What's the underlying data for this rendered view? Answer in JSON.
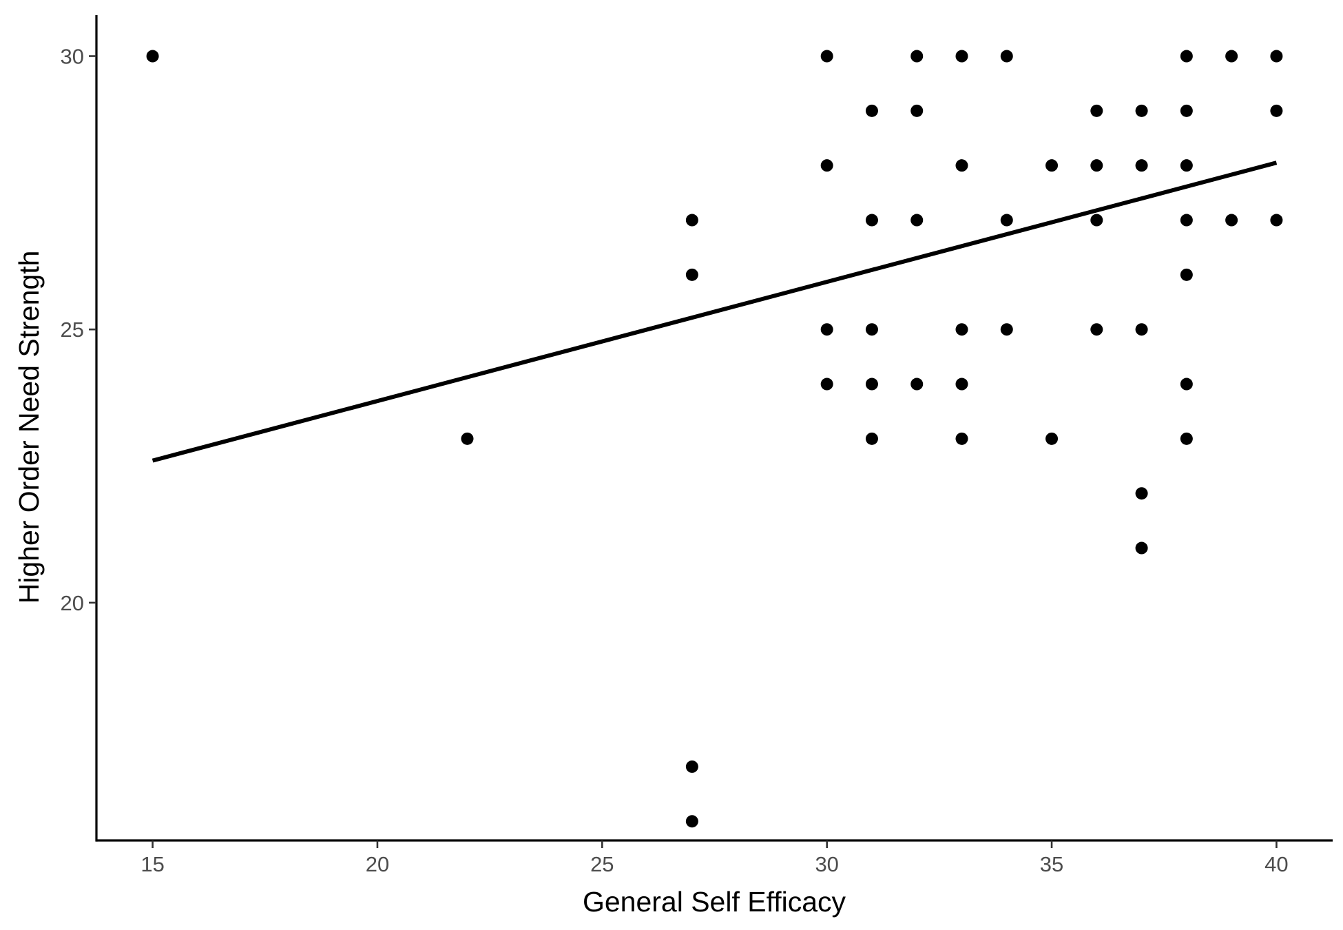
{
  "chart_data": {
    "type": "scatter",
    "title": "",
    "xlabel": "General Self Efficacy",
    "ylabel": "Higher Order Need Strength",
    "xlim": [
      13.75,
      41.25
    ],
    "ylim": [
      15.65,
      30.75
    ],
    "x_ticks": [
      15,
      20,
      25,
      30,
      35,
      40
    ],
    "y_ticks": [
      20,
      25,
      30
    ],
    "x_tick_labels": [
      "15",
      "20",
      "25",
      "30",
      "35",
      "40"
    ],
    "y_tick_labels": [
      "20",
      "25",
      "30"
    ],
    "grid": false,
    "legend": "none",
    "points": [
      [
        15,
        30
      ],
      [
        22,
        23
      ],
      [
        27,
        27
      ],
      [
        27,
        26
      ],
      [
        27,
        17
      ],
      [
        27,
        16
      ],
      [
        30,
        30
      ],
      [
        30,
        28
      ],
      [
        30,
        25
      ],
      [
        30,
        24
      ],
      [
        31,
        29
      ],
      [
        31,
        27
      ],
      [
        31,
        25
      ],
      [
        31,
        24
      ],
      [
        31,
        23
      ],
      [
        32,
        30
      ],
      [
        32,
        29
      ],
      [
        32,
        27
      ],
      [
        32,
        24
      ],
      [
        33,
        30
      ],
      [
        33,
        28
      ],
      [
        33,
        25
      ],
      [
        33,
        24
      ],
      [
        33,
        23
      ],
      [
        34,
        30
      ],
      [
        34,
        27
      ],
      [
        34,
        25
      ],
      [
        35,
        28
      ],
      [
        35,
        23
      ],
      [
        36,
        29
      ],
      [
        36,
        28
      ],
      [
        36,
        27
      ],
      [
        36,
        25
      ],
      [
        37,
        29
      ],
      [
        37,
        28
      ],
      [
        37,
        25
      ],
      [
        37,
        22
      ],
      [
        37,
        21
      ],
      [
        38,
        30
      ],
      [
        38,
        29
      ],
      [
        38,
        28
      ],
      [
        38,
        27
      ],
      [
        38,
        26
      ],
      [
        38,
        24
      ],
      [
        38,
        23
      ],
      [
        39,
        30
      ],
      [
        39,
        27
      ],
      [
        40,
        30
      ],
      [
        40,
        29
      ],
      [
        40,
        27
      ]
    ],
    "trend_line": {
      "x": [
        15,
        40
      ],
      "y": [
        22.6,
        28.05
      ]
    },
    "point_color": "#000000",
    "line_color": "#000000"
  }
}
